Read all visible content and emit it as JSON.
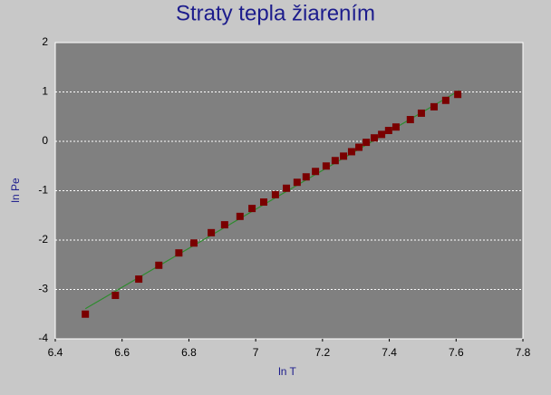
{
  "chart_data": {
    "type": "scatter",
    "title": "Straty tepla žiarením",
    "x_label": "ln T",
    "y_label": "ln Pe",
    "xlim": [
      6.4,
      7.8
    ],
    "xticks": [
      6.4,
      6.6,
      6.8,
      7,
      7.2,
      7.4,
      7.6,
      7.8
    ],
    "ylim": [
      -4,
      2
    ],
    "yticks": [
      -4,
      -3,
      -2,
      -1,
      0,
      1,
      2
    ],
    "grid": true,
    "points": {
      "color": "#7a0000",
      "x": [
        6.49,
        6.58,
        6.65,
        6.71,
        6.77,
        6.815,
        6.867,
        6.907,
        6.953,
        6.989,
        7.024,
        7.059,
        7.092,
        7.124,
        7.151,
        7.179,
        7.211,
        7.238,
        7.263,
        7.287,
        7.309,
        7.331,
        7.355,
        7.377,
        7.398,
        7.42,
        7.463,
        7.496,
        7.534,
        7.569,
        7.605
      ],
      "y": [
        -3.5,
        -3.12,
        -2.79,
        -2.51,
        -2.26,
        -2.06,
        -1.85,
        -1.69,
        -1.52,
        -1.36,
        -1.23,
        -1.08,
        -0.95,
        -0.83,
        -0.72,
        -0.61,
        -0.5,
        -0.39,
        -0.3,
        -0.21,
        -0.12,
        -0.02,
        0.07,
        0.14,
        0.22,
        0.29,
        0.44,
        0.57,
        0.7,
        0.83,
        0.95
      ]
    },
    "fit": {
      "color": "#2e8b2e",
      "x": [
        6.49,
        7.61
      ],
      "y": [
        -3.39,
        1.03
      ]
    }
  }
}
